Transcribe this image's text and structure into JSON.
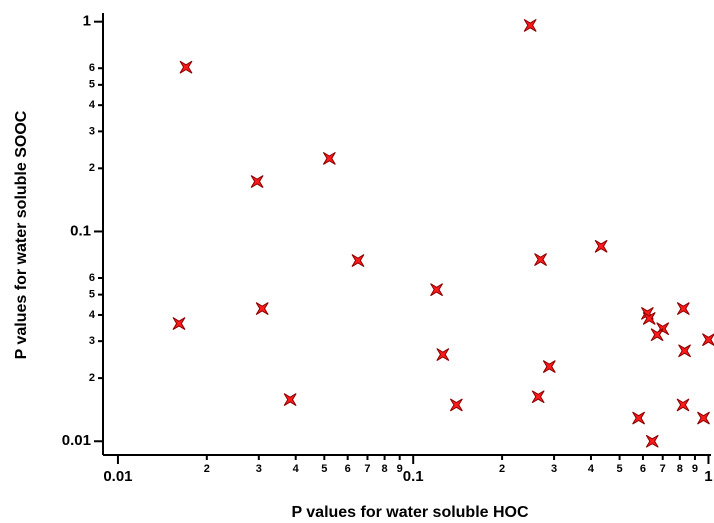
{
  "chart_data": {
    "type": "scatter",
    "x_label": "P values for water soluble HOC",
    "y_label": "P values for water soluble SOOC",
    "xscale": "log",
    "yscale": "log",
    "x": [
      0.017,
      0.249,
      0.052,
      0.0296,
      0.065,
      0.433,
      0.27,
      0.12,
      0.0161,
      0.0308,
      0.126,
      0.289,
      0.0383,
      0.14,
      0.265,
      0.58,
      0.645,
      0.621,
      0.63,
      0.7,
      0.67,
      0.822,
      0.83,
      0.82,
      0.962,
      1.0
    ],
    "series": [
      {
        "color": "#ff1a1a",
        "values": [
          0.607,
          0.96,
          0.223,
          0.173,
          0.0727,
          0.085,
          0.0735,
          0.0528,
          0.0364,
          0.0429,
          0.0259,
          0.0227,
          0.0158,
          0.0149,
          0.0163,
          0.0129,
          0.01,
          0.0407,
          0.0385,
          0.0344,
          0.0322,
          0.0429,
          0.027,
          0.0149,
          0.0129,
          0.0305
        ]
      }
    ],
    "xlim": [
      0.0089,
      1.02
    ],
    "ylim": [
      0.0086,
      1.1
    ],
    "xticks": [
      0.01,
      {
        "value": 0.02,
        "label": "2"
      },
      {
        "value": 0.03,
        "label": "3"
      },
      {
        "value": 0.04,
        "label": "4"
      },
      {
        "value": 0.05,
        "label": "5"
      },
      {
        "value": 0.06,
        "label": "6"
      },
      {
        "value": 0.07,
        "label": "7"
      },
      {
        "value": 0.08,
        "label": "8"
      },
      {
        "value": 0.09,
        "label": "9"
      },
      0.1,
      {
        "value": 0.2,
        "label": "2"
      },
      {
        "value": 0.3,
        "label": "3"
      },
      {
        "value": 0.4,
        "label": "4"
      },
      {
        "value": 0.5,
        "label": "5"
      },
      {
        "value": 0.6,
        "label": "6"
      },
      {
        "value": 0.7,
        "label": "7"
      },
      {
        "value": 0.8,
        "label": "8"
      },
      {
        "value": 0.9,
        "label": "9"
      },
      1
    ],
    "yticks": [
      0.01,
      {
        "value": 0.02,
        "label": "2"
      },
      {
        "value": 0.03,
        "label": "3"
      },
      {
        "value": 0.04,
        "label": "4"
      },
      {
        "value": 0.05,
        "label": "5"
      },
      {
        "value": 0.06,
        "label": "6"
      },
      0.1,
      {
        "value": 0.2,
        "label": "2"
      },
      {
        "value": 0.3,
        "label": "3"
      },
      {
        "value": 0.4,
        "label": "4"
      },
      {
        "value": 0.5,
        "label": "5"
      },
      {
        "value": 0.6,
        "label": "6"
      },
      1
    ]
  }
}
